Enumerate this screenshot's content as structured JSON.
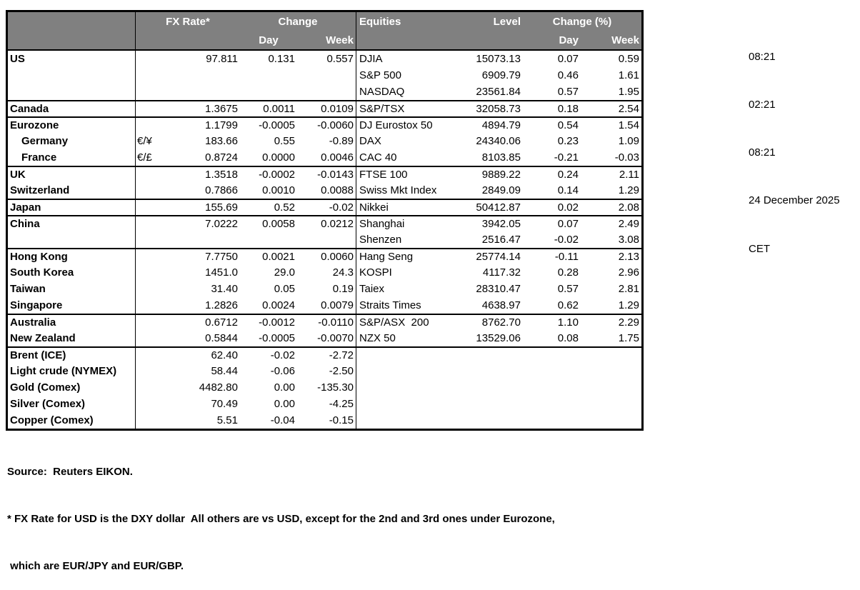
{
  "table": {
    "header": {
      "fx_rate": "FX Rate*",
      "change": "Change",
      "fx_day": "Day",
      "fx_week": "Week",
      "equities": "Equities",
      "level": "Level",
      "change_pct": "Change (%)",
      "eq_day": "Day",
      "eq_week": "Week"
    },
    "rows": [
      {
        "name": "US",
        "pair": "",
        "rate": "97.811",
        "day": "0.131",
        "week": "0.557",
        "eq": "DJIA",
        "level": "15073.13",
        "eqDay": "0.07",
        "eqWeek": "0.59",
        "section": false,
        "indent": false
      },
      {
        "name": "",
        "pair": "",
        "rate": "",
        "day": "",
        "week": "",
        "eq": "S&P 500",
        "level": "6909.79",
        "eqDay": "0.46",
        "eqWeek": "1.61",
        "section": false,
        "indent": false
      },
      {
        "name": "",
        "pair": "",
        "rate": "",
        "day": "",
        "week": "",
        "eq": "NASDAQ",
        "level": "23561.84",
        "eqDay": "0.57",
        "eqWeek": "1.95",
        "section": false,
        "indent": false
      },
      {
        "name": "Canada",
        "pair": "",
        "rate": "1.3675",
        "day": "0.0011",
        "week": "0.0109",
        "eq": "S&P/TSX",
        "level": "32058.73",
        "eqDay": "0.18",
        "eqWeek": "2.54",
        "section": true,
        "indent": false
      },
      {
        "name": "Eurozone",
        "pair": "",
        "rate": "1.1799",
        "day": "-0.0005",
        "week": "-0.0060",
        "eq": "DJ Eurostox 50",
        "level": "4894.79",
        "eqDay": "0.54",
        "eqWeek": "1.54",
        "section": true,
        "indent": false
      },
      {
        "name": "Germany",
        "pair": "€/¥",
        "rate": "183.66",
        "day": "0.55",
        "week": "-0.89",
        "eq": "DAX",
        "level": "24340.06",
        "eqDay": "0.23",
        "eqWeek": "1.09",
        "section": false,
        "indent": true
      },
      {
        "name": "France",
        "pair": "€/£",
        "rate": "0.8724",
        "day": "0.0000",
        "week": "0.0046",
        "eq": "CAC 40",
        "level": "8103.85",
        "eqDay": "-0.21",
        "eqWeek": "-0.03",
        "section": false,
        "indent": true
      },
      {
        "name": "UK",
        "pair": "",
        "rate": "1.3518",
        "day": "-0.0002",
        "week": "-0.0143",
        "eq": "FTSE 100",
        "level": "9889.22",
        "eqDay": "0.24",
        "eqWeek": "2.11",
        "section": true,
        "indent": false
      },
      {
        "name": "Switzerland",
        "pair": "",
        "rate": "0.7866",
        "day": "0.0010",
        "week": "0.0088",
        "eq": "Swiss Mkt Index",
        "level": "2849.09",
        "eqDay": "0.14",
        "eqWeek": "1.29",
        "section": false,
        "indent": false
      },
      {
        "name": "Japan",
        "pair": "",
        "rate": "155.69",
        "day": "0.52",
        "week": "-0.02",
        "eq": "Nikkei",
        "level": "50412.87",
        "eqDay": "0.02",
        "eqWeek": "2.08",
        "section": true,
        "indent": false
      },
      {
        "name": "China",
        "pair": "",
        "rate": "7.0222",
        "day": "0.0058",
        "week": "0.0212",
        "eq": "Shanghai",
        "level": "3942.05",
        "eqDay": "0.07",
        "eqWeek": "2.49",
        "section": true,
        "indent": false
      },
      {
        "name": "",
        "pair": "",
        "rate": "",
        "day": "",
        "week": "",
        "eq": "Shenzen",
        "level": "2516.47",
        "eqDay": "-0.02",
        "eqWeek": "3.08",
        "section": false,
        "indent": false
      },
      {
        "name": "Hong Kong",
        "pair": "",
        "rate": "7.7750",
        "day": "0.0021",
        "week": "0.0060",
        "eq": "Hang Seng",
        "level": "25774.14",
        "eqDay": "-0.11",
        "eqWeek": "2.13",
        "section": true,
        "indent": false
      },
      {
        "name": "South Korea",
        "pair": "",
        "rate": "1451.0",
        "day": "29.0",
        "week": "24.3",
        "eq": "KOSPI",
        "level": "4117.32",
        "eqDay": "0.28",
        "eqWeek": "2.96",
        "section": false,
        "indent": false
      },
      {
        "name": "Taiwan",
        "pair": "",
        "rate": "31.40",
        "day": "0.05",
        "week": "0.19",
        "eq": "Taiex",
        "level": "28310.47",
        "eqDay": "0.57",
        "eqWeek": "2.81",
        "section": false,
        "indent": false
      },
      {
        "name": "Singapore",
        "pair": "",
        "rate": "1.2826",
        "day": "0.0024",
        "week": "0.0079",
        "eq": "Straits Times",
        "level": "4638.97",
        "eqDay": "0.62",
        "eqWeek": "1.29",
        "section": false,
        "indent": false
      },
      {
        "name": "Australia",
        "pair": "",
        "rate": "0.6712",
        "day": "-0.0012",
        "week": "-0.0110",
        "eq": "S&P/ASX  200",
        "level": "8762.70",
        "eqDay": "1.10",
        "eqWeek": "2.29",
        "section": true,
        "indent": false
      },
      {
        "name": "New Zealand",
        "pair": "",
        "rate": "0.5844",
        "day": "-0.0005",
        "week": "-0.0070",
        "eq": "NZX 50",
        "level": "13529.06",
        "eqDay": "0.08",
        "eqWeek": "1.75",
        "section": false,
        "indent": false
      },
      {
        "name": "Brent (ICE)",
        "pair": "",
        "rate": "62.40",
        "day": "-0.02",
        "week": "-2.72",
        "eq": "",
        "level": "",
        "eqDay": "",
        "eqWeek": "",
        "section": true,
        "indent": false
      },
      {
        "name": "Light crude (NYMEX)",
        "pair": "",
        "rate": "58.44",
        "day": "-0.06",
        "week": "-2.50",
        "eq": "",
        "level": "",
        "eqDay": "",
        "eqWeek": "",
        "section": false,
        "indent": false
      },
      {
        "name": "Gold (Comex)",
        "pair": "",
        "rate": "4482.80",
        "day": "0.00",
        "week": "-135.30",
        "eq": "",
        "level": "",
        "eqDay": "",
        "eqWeek": "",
        "section": false,
        "indent": false
      },
      {
        "name": "Silver (Comex)",
        "pair": "",
        "rate": "70.49",
        "day": "0.00",
        "week": "-4.25",
        "eq": "",
        "level": "",
        "eqDay": "",
        "eqWeek": "",
        "section": false,
        "indent": false
      },
      {
        "name": "Copper (Comex)",
        "pair": "",
        "rate": "5.51",
        "day": "-0.04",
        "week": "-0.15",
        "eq": "",
        "level": "",
        "eqDay": "",
        "eqWeek": "",
        "section": false,
        "indent": false
      }
    ]
  },
  "sidebar": {
    "times": [
      "08:21",
      "02:21",
      "08:21",
      "24 December 2025",
      "CET"
    ]
  },
  "footer": {
    "source": "Source:  Reuters EIKON.",
    "note_line1": "* FX Rate for USD is the DXY dollar  All others are vs USD, except for the 2nd and 3rd ones under Eurozone,",
    "note_line2": " which are EUR/JPY and EUR/GBP."
  },
  "colors": {
    "header_bg": "#808080",
    "header_text": "#ffffff",
    "border": "#000000"
  }
}
